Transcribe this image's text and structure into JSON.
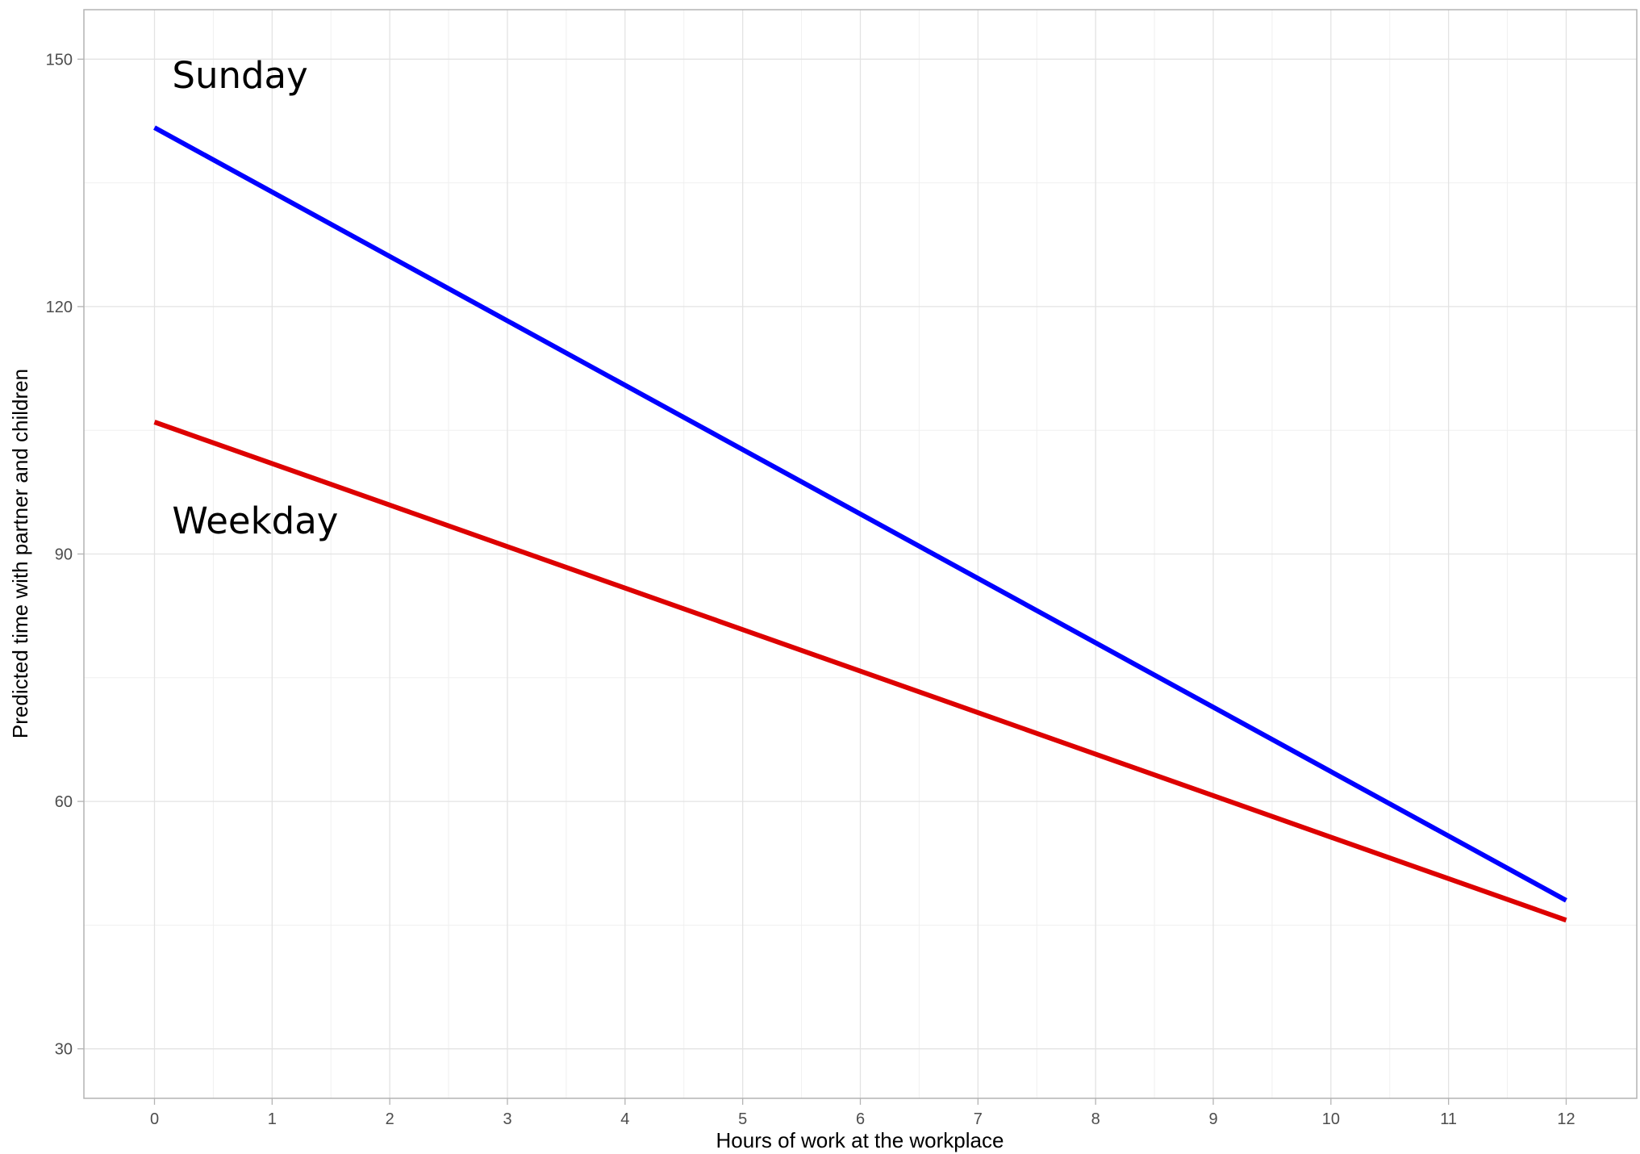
{
  "chart_data": {
    "type": "line",
    "title": "",
    "xlabel": "Hours of work at the workplace",
    "ylabel": "Predicted time with partner and children",
    "x_ticks": [
      0,
      1,
      2,
      3,
      4,
      5,
      6,
      7,
      8,
      9,
      10,
      11,
      12
    ],
    "y_ticks": [
      30,
      60,
      90,
      120,
      150
    ],
    "xlim": [
      -0.6,
      12.6
    ],
    "ylim": [
      24,
      156
    ],
    "grid": true,
    "legend": "none",
    "series": [
      {
        "name": "Sunday",
        "color": "#0000ff",
        "x": [
          0,
          12
        ],
        "y": [
          141.7,
          48.0
        ]
      },
      {
        "name": "Weekday",
        "color": "#dd0000",
        "x": [
          0,
          12
        ],
        "y": [
          106.0,
          45.6
        ]
      }
    ],
    "annotations": [
      {
        "text": "Sunday",
        "x": 0.15,
        "y": 146.5
      },
      {
        "text": "Weekday",
        "x": 0.15,
        "y": 92.5
      }
    ]
  }
}
